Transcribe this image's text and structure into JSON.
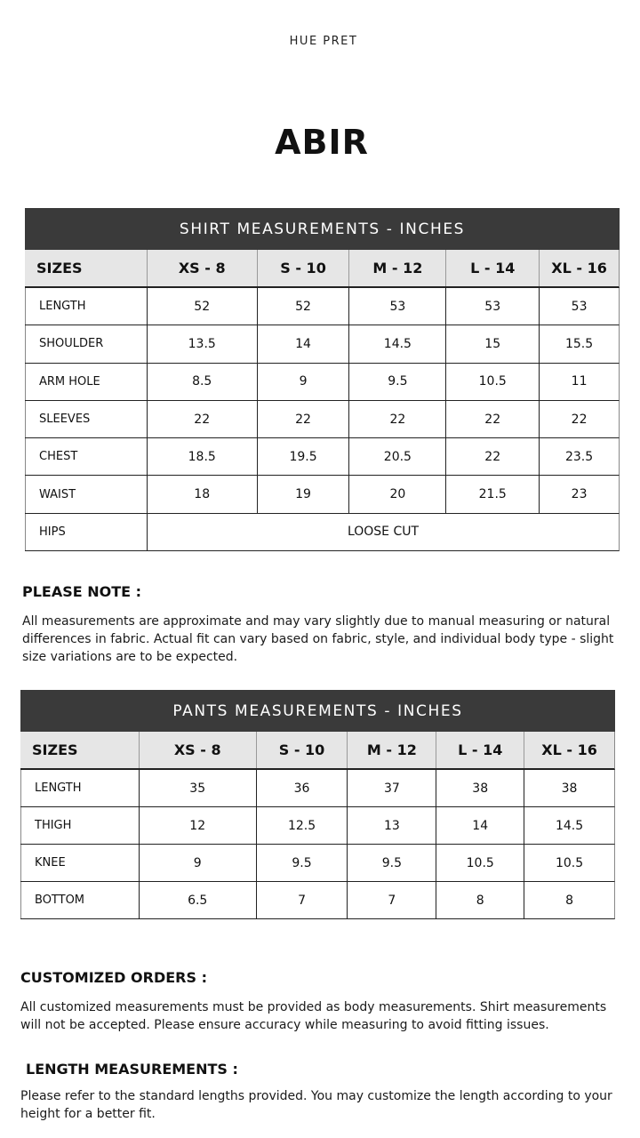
{
  "brand": "HUE PRET",
  "title": "ABIR",
  "shirt": {
    "heading": "SHIRT MEASUREMENTS - INCHES",
    "header": [
      "SIZES",
      "XS - 8",
      "S - 10",
      "M - 12",
      "L - 14",
      "XL - 16"
    ],
    "rows": [
      [
        "LENGTH",
        "52",
        "52",
        "53",
        "53",
        "53"
      ],
      [
        "SHOULDER",
        "13.5",
        "14",
        "14.5",
        "15",
        "15.5"
      ],
      [
        "ARM HOLE",
        "8.5",
        "9",
        "9.5",
        "10.5",
        "11"
      ],
      [
        "SLEEVES",
        "22",
        "22",
        "22",
        "22",
        "22"
      ],
      [
        "CHEST",
        "18.5",
        "19.5",
        "20.5",
        "22",
        "23.5"
      ],
      [
        "WAIST",
        "18",
        "19",
        "20",
        "21.5",
        "23"
      ],
      [
        "HIPS",
        "LOOSE  CUT"
      ]
    ]
  },
  "note": {
    "heading": "PLEASE NOTE :",
    "text": "All measurements are approximate and may vary slightly due to manual measuring or natural differences in fabric. Actual fit can vary based on fabric, style, and individual body type - slight size variations are to be expected."
  },
  "pants": {
    "heading": "PANTS MEASUREMENTS - INCHES",
    "header": [
      "SIZES",
      "XS - 8",
      "S - 10",
      "M - 12",
      "L - 14",
      "XL - 16"
    ],
    "rows": [
      [
        "LENGTH",
        "35",
        "36",
        "37",
        "38",
        "38"
      ],
      [
        "THIGH",
        "12",
        "12.5",
        "13",
        "14",
        "14.5"
      ],
      [
        "KNEE",
        "9",
        "9.5",
        "9.5",
        "10.5",
        "10.5"
      ],
      [
        "BOTTOM",
        "6.5",
        "7",
        "7",
        "8",
        "8"
      ]
    ]
  },
  "customized": {
    "heading": "CUSTOMIZED ORDERS :",
    "text": "All customized measurements must be provided as body measurements. Shirt measurements will not be accepted. Please ensure accuracy while measuring to avoid fitting issues."
  },
  "length": {
    "heading": "LENGTH MEASUREMENTS :",
    "text": "Please refer to the standard lengths provided. You may customize the length according to your height for a better fit."
  }
}
